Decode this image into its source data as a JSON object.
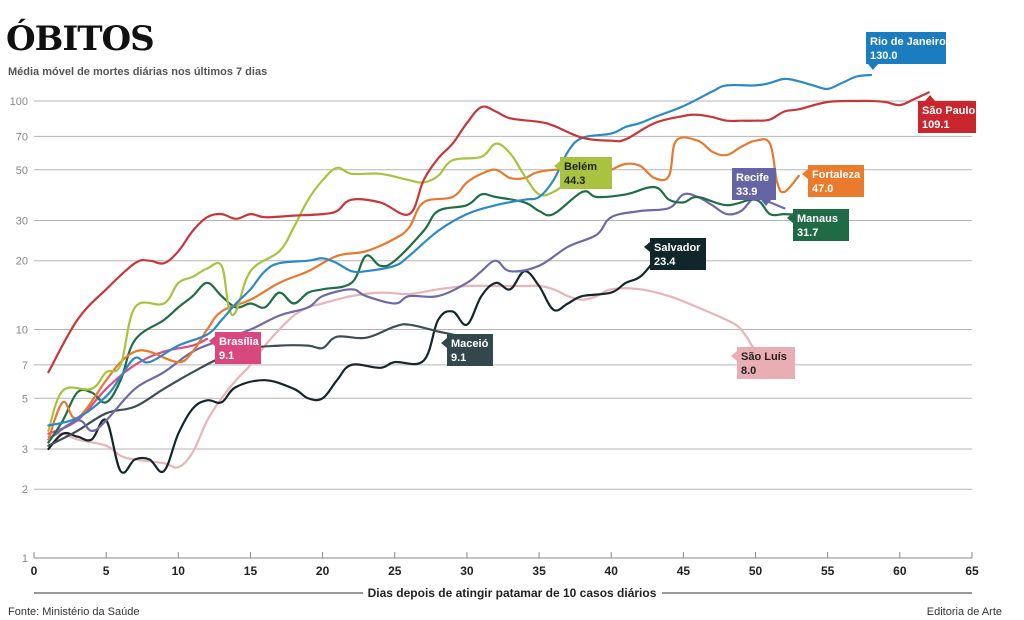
{
  "header": {
    "title": "ÓBITOS",
    "subtitle": "Média móvel de mortes diárias nos últimos 7 dias"
  },
  "footer": {
    "source": "Fonte:  Ministério da Saúde",
    "credit": "Editoria de Arte"
  },
  "chart_data": {
    "type": "line",
    "title": "ÓBITOS",
    "subtitle": "Média móvel de mortes diárias nos últimos 7 dias",
    "xlabel": "Dias depois de atingir patamar de 10 casos diários",
    "ylabel": "",
    "yscale": "log",
    "xlim": [
      0,
      65
    ],
    "ylim": [
      1,
      100
    ],
    "xticks": [
      0,
      5,
      10,
      15,
      20,
      25,
      30,
      35,
      40,
      45,
      50,
      55,
      60,
      65
    ],
    "yticks": [
      1,
      2,
      3,
      5,
      7,
      10,
      20,
      30,
      50,
      70,
      100
    ],
    "grid": true,
    "legend": "direct-labels",
    "series": [
      {
        "name": "São Luís",
        "label_value": "8.0",
        "color": "#e8b4b8",
        "x": [
          1,
          2,
          3,
          5,
          6,
          7,
          9,
          10,
          11,
          12,
          13,
          14,
          15,
          16,
          17,
          18,
          19,
          20,
          22,
          24,
          26,
          28,
          30,
          32,
          34,
          35,
          36,
          37,
          38,
          39,
          40,
          42,
          44,
          46,
          48,
          49,
          50
        ],
        "y": [
          3.4,
          3.5,
          3.3,
          3.1,
          2.8,
          2.7,
          2.6,
          2.5,
          2.9,
          4,
          5,
          6,
          7,
          8.5,
          10,
          11.5,
          12.5,
          13,
          14,
          14.5,
          14.3,
          15,
          15.5,
          15.5,
          15.5,
          15.5,
          15,
          14,
          13.5,
          14,
          15,
          15,
          14,
          12.5,
          11,
          10,
          8
        ]
      },
      {
        "name": "Salvador",
        "label_value": "23.4",
        "color": "#14262b",
        "x": [
          1,
          2,
          3,
          4,
          5,
          6,
          7,
          8,
          9,
          10,
          11,
          12,
          13,
          14,
          16,
          18,
          19,
          20,
          21,
          22,
          24,
          25,
          27,
          28,
          29,
          30,
          31,
          32,
          33,
          34,
          35,
          36,
          37,
          38,
          40,
          41,
          42,
          43,
          44
        ],
        "y": [
          3,
          3.5,
          3.4,
          3.3,
          4,
          2.4,
          2.7,
          2.7,
          2.4,
          3.5,
          4.5,
          4.9,
          4.8,
          5.6,
          6,
          5.5,
          5,
          5,
          6,
          7,
          6.8,
          7.2,
          7.3,
          11,
          12,
          10.5,
          14,
          16,
          15,
          18,
          15.5,
          12.2,
          13,
          14,
          14.5,
          16,
          17,
          20,
          23.4
        ]
      },
      {
        "name": "Maceió",
        "label_value": "9.1",
        "color": "#3d4f55",
        "x": [
          1,
          3,
          5,
          7,
          9,
          11,
          13,
          14,
          15,
          17,
          19,
          20,
          21,
          23,
          25,
          26,
          28,
          29,
          30
        ],
        "y": [
          3.1,
          3.6,
          4.3,
          4.6,
          5.5,
          6.5,
          7.5,
          7.2,
          8.2,
          8.5,
          8.5,
          8.3,
          9.3,
          9.2,
          10.3,
          10.5,
          9.8,
          9.5,
          9.1
        ]
      },
      {
        "name": "Brasília",
        "label_value": "9.1",
        "color": "#d94f8a",
        "x": [
          1,
          3,
          5,
          7,
          9,
          11,
          12
        ],
        "y": [
          3.5,
          4,
          5.5,
          7,
          8,
          8.5,
          9.1
        ]
      },
      {
        "name": "Recife",
        "label_value": "33.9",
        "color": "#6e6aa8",
        "x": [
          1,
          3,
          4,
          5,
          7,
          9,
          11,
          13,
          15,
          17,
          19,
          20,
          22,
          23,
          25,
          26,
          28,
          30,
          31,
          32,
          33,
          35,
          37,
          39,
          40,
          42,
          44,
          45,
          46,
          47,
          48,
          49,
          50,
          51,
          52
        ],
        "y": [
          3.3,
          4,
          3.6,
          4,
          5.5,
          6.5,
          8,
          9,
          10,
          11.5,
          12.5,
          14,
          15,
          14,
          13,
          14,
          14,
          16,
          18,
          20,
          18,
          19,
          23,
          26,
          31,
          33,
          34,
          39,
          38,
          35,
          32,
          33,
          38,
          36,
          33.9
        ]
      },
      {
        "name": "Manaus",
        "label_value": "31.7",
        "color": "#1f6e45",
        "x": [
          1,
          2,
          3,
          4,
          5,
          6,
          7,
          9,
          10,
          11,
          12,
          13,
          14,
          15,
          16,
          17,
          18,
          19,
          20,
          22,
          23,
          24,
          25,
          27,
          28,
          30,
          31,
          32,
          34,
          35,
          36,
          38,
          39,
          41,
          43,
          44,
          45,
          46,
          48,
          50,
          51,
          52,
          53
        ],
        "y": [
          3.2,
          4,
          5.3,
          5.3,
          4.8,
          6,
          9,
          11,
          12.5,
          14,
          16,
          14,
          12.5,
          13,
          12.5,
          14.5,
          13,
          14.5,
          15,
          16,
          21,
          19,
          20,
          27,
          33,
          35,
          39,
          38,
          36,
          33,
          32,
          40,
          38,
          39,
          42,
          37,
          36,
          38,
          35,
          37,
          32,
          32,
          31.7
        ]
      },
      {
        "name": "Fortaleza",
        "label_value": "47.0",
        "color": "#e8782e",
        "x": [
          1,
          2,
          3,
          5,
          6,
          7,
          8,
          10,
          11,
          12,
          13,
          15,
          17,
          19,
          21,
          23,
          25,
          26,
          27,
          29,
          30,
          31,
          32,
          33,
          34,
          35,
          37,
          39,
          40,
          41,
          42,
          43,
          44,
          44.5,
          46,
          47,
          48,
          49,
          50,
          51,
          51.5,
          52,
          53
        ],
        "y": [
          3.3,
          4.8,
          4.1,
          6,
          7.2,
          8,
          8,
          7.2,
          8,
          10,
          12,
          13.5,
          16,
          18,
          21,
          22,
          25,
          28,
          36,
          38,
          44,
          48,
          50,
          46,
          46,
          49,
          50,
          47,
          50,
          53,
          52,
          46,
          47,
          67,
          67,
          60,
          58,
          63,
          67,
          65,
          44,
          40,
          47
        ]
      },
      {
        "name": "Belém",
        "label_value": "44.3",
        "color": "#a9c23f",
        "x": [
          1,
          2,
          4,
          5,
          6,
          7,
          9,
          10,
          11,
          12,
          13,
          13.5,
          14,
          15,
          17,
          18,
          19,
          20,
          21,
          22,
          24,
          26,
          27,
          28,
          29,
          31,
          32,
          33,
          34,
          35,
          36,
          37
        ],
        "y": [
          3.6,
          5.4,
          5.5,
          6.5,
          7,
          12.5,
          13,
          16,
          17,
          18.5,
          19,
          12.5,
          12,
          18,
          22,
          28,
          37,
          45,
          51,
          48,
          48,
          45,
          44,
          47,
          55,
          57,
          65,
          59,
          47,
          39,
          40,
          44.3
        ]
      },
      {
        "name": "Rio de Janeiro",
        "label_value": "130.0",
        "color": "#2b8ac6",
        "x": [
          1,
          3,
          5,
          6,
          7,
          8,
          10,
          12,
          13,
          14,
          15,
          16,
          17,
          19,
          20,
          21,
          22,
          23,
          25,
          26,
          28,
          30,
          32,
          34,
          35,
          36,
          37,
          38,
          40,
          41,
          42,
          43,
          45,
          47,
          48,
          50,
          51,
          52,
          53,
          54,
          55,
          56,
          57,
          58
        ],
        "y": [
          3.8,
          4.1,
          5.1,
          6.2,
          7.5,
          7.2,
          8.5,
          9.5,
          11,
          13,
          15,
          18,
          19.5,
          20,
          20.5,
          19.5,
          18,
          18,
          19,
          21,
          27,
          32,
          35,
          37,
          38,
          45,
          60,
          69,
          72,
          77,
          80,
          85,
          95,
          110,
          117,
          117,
          120,
          125,
          122,
          117,
          113,
          120,
          128,
          130
        ]
      },
      {
        "name": "São Paulo",
        "label_value": "109.1",
        "color": "#c8363a",
        "x": [
          1,
          3,
          5,
          7,
          8,
          9,
          10,
          11,
          12,
          13,
          14,
          15,
          16,
          18,
          20,
          21,
          22,
          24,
          26,
          27,
          28,
          29,
          30,
          31,
          32,
          33,
          35,
          36,
          38,
          40,
          41,
          43,
          45,
          46,
          47,
          48,
          49,
          50,
          51,
          52,
          53,
          55,
          57,
          58,
          59,
          60,
          61,
          62
        ],
        "y": [
          6.5,
          11,
          15,
          19.5,
          20,
          19.5,
          22,
          27,
          31,
          32,
          30.5,
          32,
          31,
          31.5,
          32,
          33,
          37,
          36,
          32,
          45,
          56,
          65,
          80,
          94,
          90,
          84,
          81,
          78,
          69,
          67,
          68,
          80,
          86,
          87,
          85,
          82,
          82,
          82,
          83,
          90,
          92,
          99,
          100,
          100,
          99,
          96,
          102,
          109
        ]
      }
    ]
  }
}
